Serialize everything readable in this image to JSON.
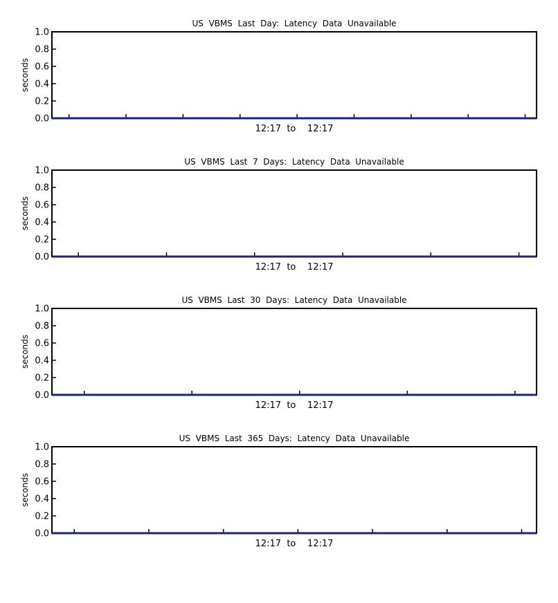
{
  "chart_data": [
    {
      "type": "line",
      "title": "US  VBMS  Last  Day:  Latency  Data  Unavailable",
      "ylabel": "seconds",
      "xlabel": "12:17  to    12:17",
      "ylim": [
        0,
        1.0
      ],
      "y_ticks": [
        "0.0",
        "0.2",
        "0.4",
        "0.6",
        "0.8",
        "1.0"
      ],
      "x_tick_count": 9,
      "series": [
        {
          "values": [
            0,
            0
          ]
        }
      ]
    },
    {
      "type": "line",
      "title": "US  VBMS  Last  7  Days:  Latency  Data  Unavailable",
      "ylabel": "seconds",
      "xlabel": "12:17  to    12:17",
      "ylim": [
        0,
        1.0
      ],
      "y_ticks": [
        "0.0",
        "0.2",
        "0.4",
        "0.6",
        "0.8",
        "1.0"
      ],
      "x_tick_count": 6,
      "series": [
        {
          "values": [
            0,
            0
          ]
        }
      ]
    },
    {
      "type": "line",
      "title": "US  VBMS  Last  30  Days:  Latency  Data  Unavailable",
      "ylabel": "seconds",
      "xlabel": "12:17  to    12:17",
      "ylim": [
        0,
        1.0
      ],
      "y_ticks": [
        "0.0",
        "0.2",
        "0.4",
        "0.6",
        "0.8",
        "1.0"
      ],
      "x_tick_count": 5,
      "series": [
        {
          "values": [
            0,
            0
          ]
        }
      ]
    },
    {
      "type": "line",
      "title": "US  VBMS  Last  365  Days:  Latency  Data  Unavailable",
      "ylabel": "seconds",
      "xlabel": "12:17  to    12:17",
      "ylim": [
        0,
        1.0
      ],
      "y_ticks": [
        "0.0",
        "0.2",
        "0.4",
        "0.6",
        "0.8",
        "1.0"
      ],
      "x_tick_count": 7,
      "series": [
        {
          "values": [
            0,
            0
          ]
        }
      ]
    }
  ],
  "colors": {
    "axis": "#000000",
    "series_line": "#1a237e",
    "background": "#ffffff"
  }
}
